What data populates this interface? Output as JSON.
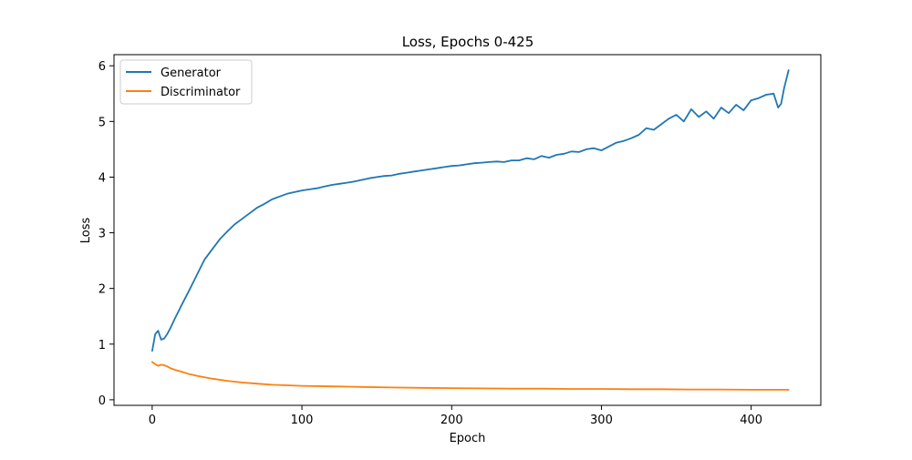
{
  "chart_data": {
    "type": "line",
    "title": "Loss, Epochs 0-425",
    "xlabel": "Epoch",
    "ylabel": "Loss",
    "xlim": [
      -25.5,
      446.5
    ],
    "ylim": [
      -0.1,
      6.2
    ],
    "xticks": [
      0,
      100,
      200,
      300,
      400
    ],
    "yticks": [
      0,
      1,
      2,
      3,
      4,
      5,
      6
    ],
    "xtick_labels": [
      "0",
      "100",
      "200",
      "300",
      "400"
    ],
    "ytick_labels": [
      "0",
      "1",
      "2",
      "3",
      "4",
      "5",
      "6"
    ],
    "grid": false,
    "legend_position": "top-left",
    "series": [
      {
        "name": "Generator",
        "color": "#1f77b4",
        "x": [
          0,
          2,
          4,
          6,
          8,
          10,
          12,
          15,
          20,
          25,
          30,
          35,
          40,
          45,
          50,
          55,
          60,
          65,
          70,
          75,
          80,
          85,
          90,
          95,
          100,
          105,
          110,
          115,
          120,
          125,
          130,
          135,
          140,
          145,
          150,
          155,
          160,
          165,
          170,
          175,
          180,
          185,
          190,
          195,
          200,
          205,
          210,
          215,
          220,
          225,
          230,
          235,
          240,
          245,
          250,
          255,
          260,
          265,
          270,
          275,
          280,
          285,
          290,
          295,
          300,
          305,
          310,
          315,
          320,
          325,
          330,
          335,
          340,
          345,
          350,
          355,
          360,
          365,
          370,
          375,
          380,
          385,
          390,
          395,
          400,
          405,
          410,
          415,
          418,
          420,
          422,
          425
        ],
        "y": [
          0.88,
          1.18,
          1.24,
          1.08,
          1.1,
          1.18,
          1.28,
          1.45,
          1.72,
          1.98,
          2.25,
          2.52,
          2.7,
          2.88,
          3.02,
          3.15,
          3.25,
          3.35,
          3.45,
          3.52,
          3.6,
          3.65,
          3.7,
          3.73,
          3.76,
          3.78,
          3.8,
          3.83,
          3.86,
          3.88,
          3.9,
          3.92,
          3.95,
          3.98,
          4.0,
          4.02,
          4.03,
          4.06,
          4.08,
          4.1,
          4.12,
          4.14,
          4.16,
          4.18,
          4.2,
          4.21,
          4.23,
          4.25,
          4.26,
          4.27,
          4.28,
          4.27,
          4.3,
          4.3,
          4.34,
          4.32,
          4.38,
          4.35,
          4.4,
          4.42,
          4.46,
          4.45,
          4.5,
          4.52,
          4.48,
          4.55,
          4.62,
          4.65,
          4.7,
          4.76,
          4.88,
          4.85,
          4.95,
          5.05,
          5.12,
          5.0,
          5.22,
          5.08,
          5.18,
          5.05,
          5.25,
          5.15,
          5.3,
          5.2,
          5.38,
          5.42,
          5.48,
          5.5,
          5.25,
          5.32,
          5.6,
          5.92
        ]
      },
      {
        "name": "Discriminator",
        "color": "#ff7f0e",
        "x": [
          0,
          2,
          4,
          6,
          8,
          10,
          12,
          15,
          20,
          25,
          30,
          40,
          50,
          60,
          70,
          80,
          90,
          100,
          120,
          140,
          160,
          180,
          200,
          220,
          240,
          260,
          280,
          300,
          320,
          340,
          360,
          380,
          400,
          425
        ],
        "y": [
          0.68,
          0.64,
          0.61,
          0.63,
          0.62,
          0.6,
          0.57,
          0.54,
          0.5,
          0.46,
          0.43,
          0.38,
          0.34,
          0.31,
          0.29,
          0.27,
          0.26,
          0.25,
          0.24,
          0.23,
          0.22,
          0.215,
          0.21,
          0.205,
          0.2,
          0.2,
          0.195,
          0.195,
          0.19,
          0.19,
          0.185,
          0.185,
          0.18,
          0.18
        ]
      }
    ]
  }
}
